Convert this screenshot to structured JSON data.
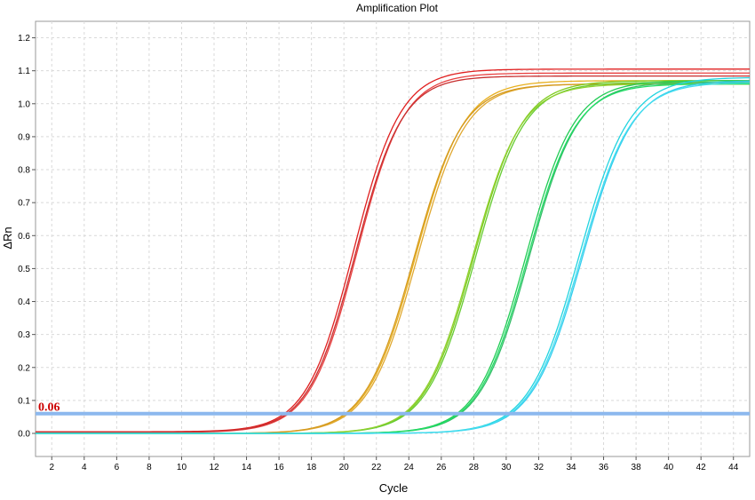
{
  "chart_data": {
    "type": "line",
    "title": "Amplification Plot",
    "xlabel": "Cycle",
    "ylabel": "ΔRn",
    "xlim": [
      1,
      45
    ],
    "ylim": [
      -0.07,
      1.25
    ],
    "x_ticks": [
      2,
      4,
      6,
      8,
      10,
      12,
      14,
      16,
      18,
      20,
      22,
      24,
      26,
      28,
      30,
      32,
      34,
      36,
      38,
      40,
      42,
      44
    ],
    "y_ticks": [
      0.0,
      0.1,
      0.2,
      0.3,
      0.4,
      0.5,
      0.6,
      0.7,
      0.8,
      0.9,
      1.0,
      1.1,
      1.2
    ],
    "y_tick_labels": [
      "0.0",
      "0.1",
      "0.2",
      "0.3",
      "0.4",
      "0.5",
      "0.6",
      "0.7",
      "0.8",
      "0.9",
      "1.0",
      "1.1",
      "1.2"
    ],
    "grid": true,
    "legend": "none",
    "threshold": {
      "value": 0.06,
      "label": "0.06",
      "color": "#8cb8ee",
      "label_color": "#cc0000"
    },
    "series": [
      {
        "color": "#e02020",
        "midpoint": 20.6,
        "slope": 1.45,
        "plateau": 1.1,
        "baseline": 0.005
      },
      {
        "color": "#e84040",
        "midpoint": 20.8,
        "slope": 1.45,
        "plateau": 1.09,
        "baseline": 0.003
      },
      {
        "color": "#c83030",
        "midpoint": 20.7,
        "slope": 1.45,
        "plateau": 1.08,
        "baseline": 0.004
      },
      {
        "color": "#e8b020",
        "midpoint": 24.4,
        "slope": 1.5,
        "plateau": 1.07,
        "baseline": 0.0
      },
      {
        "color": "#e0a830",
        "midpoint": 24.5,
        "slope": 1.5,
        "plateau": 1.06,
        "baseline": 0.0
      },
      {
        "color": "#d49a20",
        "midpoint": 24.3,
        "slope": 1.5,
        "plateau": 1.06,
        "baseline": 0.0
      },
      {
        "color": "#7fcc20",
        "midpoint": 28.0,
        "slope": 1.5,
        "plateau": 1.07,
        "baseline": 0.0
      },
      {
        "color": "#66cc33",
        "midpoint": 28.1,
        "slope": 1.5,
        "plateau": 1.065,
        "baseline": 0.0
      },
      {
        "color": "#90d030",
        "midpoint": 27.9,
        "slope": 1.5,
        "plateau": 1.06,
        "baseline": 0.0
      },
      {
        "color": "#22cc55",
        "midpoint": 31.2,
        "slope": 1.5,
        "plateau": 1.07,
        "baseline": 0.0
      },
      {
        "color": "#33bb66",
        "midpoint": 31.4,
        "slope": 1.5,
        "plateau": 1.065,
        "baseline": 0.0
      },
      {
        "color": "#22dd66",
        "midpoint": 31.3,
        "slope": 1.5,
        "plateau": 1.06,
        "baseline": 0.0
      },
      {
        "color": "#22d4e0",
        "midpoint": 34.5,
        "slope": 1.55,
        "plateau": 1.08,
        "baseline": 0.0
      },
      {
        "color": "#33ccee",
        "midpoint": 34.7,
        "slope": 1.55,
        "plateau": 1.07,
        "baseline": 0.0
      },
      {
        "color": "#44ddee",
        "midpoint": 34.6,
        "slope": 1.55,
        "plateau": 1.065,
        "baseline": 0.0
      }
    ]
  }
}
